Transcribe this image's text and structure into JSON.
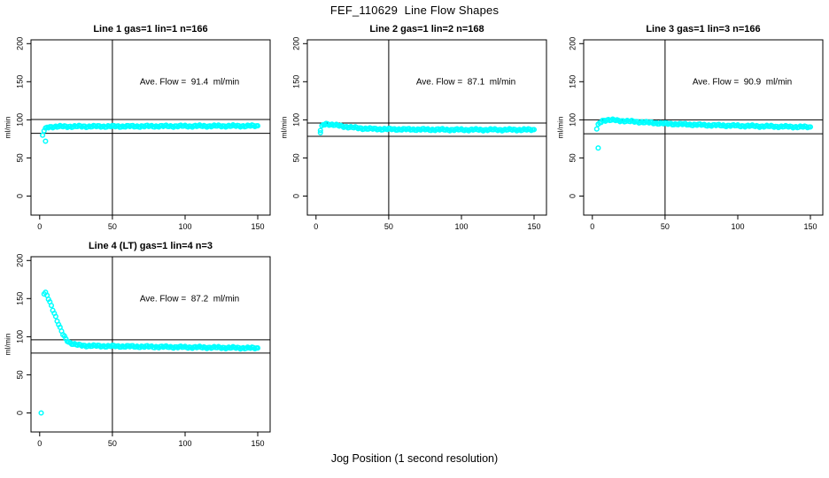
{
  "figure": {
    "title": "FEF_110629  Line Flow Shapes",
    "xlabel": "Jog Position (1 second resolution)"
  },
  "chart_data": {
    "type": "scatter",
    "title": "FEF_110629  Line Flow Shapes",
    "xlabel": "Jog Position (1 second resolution)",
    "ylabel": "ml/min",
    "x_ticks": [
      0,
      50,
      100,
      150
    ],
    "y_ticks": [
      0,
      50,
      100,
      150,
      200
    ],
    "xlim": [
      -6,
      158.5
    ],
    "ylim": [
      -25,
      205
    ],
    "grid": false,
    "legend": "none",
    "point_color": "#00FFFF",
    "line_color": "#000000",
    "vline_x": 50,
    "panels": [
      {
        "title": "Line 1 gas=1 lin=1 n=166",
        "ave_flow_label": "Ave. Flow =  91.4  ml/min",
        "ave_flow": 91.4,
        "n": 166,
        "hlines": [
          100.5,
          82.3
        ],
        "profile": [
          [
            2,
            80
          ],
          [
            3,
            85.5
          ],
          [
            4,
            88
          ],
          [
            5,
            90
          ],
          [
            8,
            91
          ],
          [
            20,
            91.3
          ],
          [
            60,
            91.5
          ],
          [
            100,
            91.8
          ],
          [
            150,
            92
          ]
        ],
        "outliers": [
          [
            4,
            72
          ]
        ]
      },
      {
        "title": "Line 2 gas=1 lin=2 n=168",
        "ave_flow_label": "Ave. Flow =  87.1  ml/min",
        "ave_flow": 87.1,
        "n": 168,
        "hlines": [
          95.8,
          78.4
        ],
        "profile": [
          [
            3,
            86
          ],
          [
            4,
            91
          ],
          [
            5,
            93.5
          ],
          [
            7,
            95
          ],
          [
            10,
            94
          ],
          [
            15,
            92.5
          ],
          [
            20,
            91
          ],
          [
            30,
            89
          ],
          [
            40,
            88
          ],
          [
            60,
            87.5
          ],
          [
            100,
            87
          ],
          [
            150,
            87
          ]
        ],
        "outliers": [
          [
            3,
            83
          ]
        ]
      },
      {
        "title": "Line 3 gas=1 lin=3 n=166",
        "ave_flow_label": "Ave. Flow =  90.9  ml/min",
        "ave_flow": 90.9,
        "n": 166,
        "hlines": [
          100.0,
          81.8
        ],
        "profile": [
          [
            3,
            88
          ],
          [
            4,
            93
          ],
          [
            5,
            96
          ],
          [
            7,
            99
          ],
          [
            10,
            100
          ],
          [
            15,
            99.5
          ],
          [
            20,
            98.8
          ],
          [
            30,
            97.5
          ],
          [
            50,
            95
          ],
          [
            80,
            93
          ],
          [
            120,
            91.5
          ],
          [
            150,
            90.5
          ]
        ],
        "outliers": [
          [
            4,
            63
          ]
        ]
      },
      {
        "title": "Line 4 (LT) gas=1 lin=4 n=3",
        "ave_flow_label": "Ave. Flow =  87.2  ml/min",
        "ave_flow": 87.2,
        "n": 3,
        "hlines": [
          95.9,
          78.5
        ],
        "profile": [
          [
            3,
            156
          ],
          [
            4,
            157
          ],
          [
            5,
            154
          ],
          [
            6,
            150
          ],
          [
            8,
            141
          ],
          [
            10,
            131
          ],
          [
            12,
            121
          ],
          [
            14,
            111
          ],
          [
            16,
            103
          ],
          [
            18,
            97
          ],
          [
            20,
            93
          ],
          [
            23,
            90.5
          ],
          [
            26,
            89
          ],
          [
            30,
            88.3
          ],
          [
            40,
            87.8
          ],
          [
            60,
            87.3
          ],
          [
            90,
            86.5
          ],
          [
            120,
            85.8
          ],
          [
            150,
            85
          ]
        ],
        "outliers": [
          [
            1,
            0
          ]
        ]
      }
    ]
  }
}
